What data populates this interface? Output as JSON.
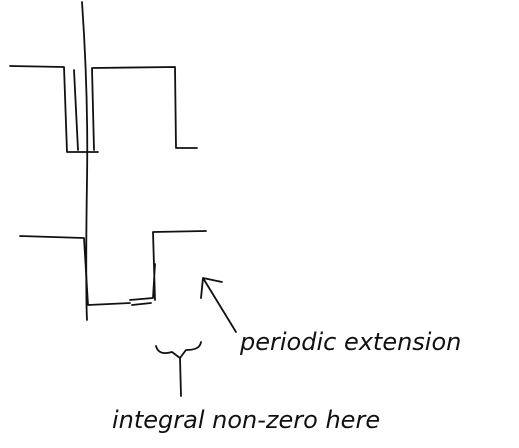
{
  "labels": [
    "periodic extension",
    "integral non-zero here"
  ]
}
